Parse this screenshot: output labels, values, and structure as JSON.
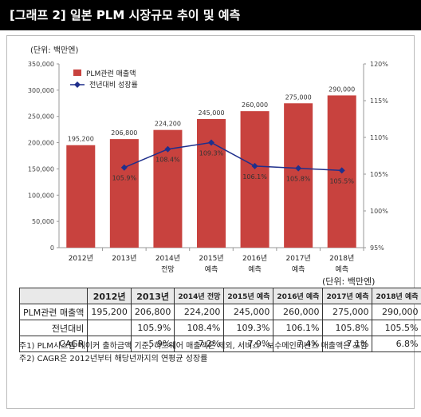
{
  "title": "[그래프 2] 일본 PLM 시장규모 추이 및 예측",
  "chart_data": {
    "type": "bar",
    "unit_label": "(단위: 백만엔)",
    "categories": [
      "2012년",
      "2013년",
      "2014년",
      "2015년",
      "2016년",
      "2017년",
      "2018년"
    ],
    "category_sublabels": [
      "",
      "",
      "전망",
      "예측",
      "예측",
      "예측",
      "예측"
    ],
    "series": [
      {
        "name": "PLM관련 매출액",
        "type": "bar",
        "axis": "left",
        "color": "#c8423e",
        "values": [
          195200,
          206800,
          224200,
          245000,
          260000,
          275000,
          290000
        ],
        "labels": [
          "195,200",
          "206,800",
          "224,200",
          "245,000",
          "260,000",
          "275,000",
          "290,000"
        ]
      },
      {
        "name": "전년대비 성장률",
        "type": "line",
        "axis": "right",
        "color": "#1f2f8c",
        "values": [
          null,
          105.9,
          108.4,
          109.3,
          106.1,
          105.8,
          105.5
        ],
        "labels": [
          "",
          "105.9%",
          "108.4%",
          "109.3%",
          "106.1%",
          "105.8%",
          "105.5%"
        ]
      }
    ],
    "ylim_left": [
      0,
      350000
    ],
    "ylim_right": [
      95,
      120
    ],
    "yticks_left": [
      "0",
      "50,000",
      "100,000",
      "150,000",
      "200,000",
      "250,000",
      "300,000",
      "350,000"
    ],
    "yticks_right": [
      "95%",
      "100%",
      "105%",
      "110%",
      "115%",
      "120%"
    ],
    "grid": false,
    "legend_position": "top-left"
  },
  "table": {
    "unit": "(단위: 백만엔)",
    "headers": [
      "",
      "2012년",
      "2013년",
      "2014년 전망",
      "2015년 예측",
      "2016년 예측",
      "2017년 예측",
      "2018년 예측"
    ],
    "rows": [
      [
        "PLM관련 매출액",
        "195,200",
        "206,800",
        "224,200",
        "245,000",
        "260,000",
        "275,000",
        "290,000"
      ],
      [
        "전년대비",
        "",
        "105.9%",
        "108.4%",
        "109.3%",
        "106.1%",
        "105.8%",
        "105.5%"
      ],
      [
        "CAGR",
        "",
        "5.9%",
        "7.2%",
        "7.9%",
        "7.4%",
        "7.1%",
        "6.8%"
      ]
    ]
  },
  "notes": [
    "주1) PLM시스템 메이커 출하금액 기준, 하드웨어 매출액은 제외, 서비스 · 보수메인터넌스 매출액은 포함",
    "주2) CAGR은 2012년부터 해당년까지의 연평균 성장률"
  ],
  "colors": {
    "title_bg": "#000000",
    "bar": "#c8423e",
    "line": "#1f2f8c"
  }
}
